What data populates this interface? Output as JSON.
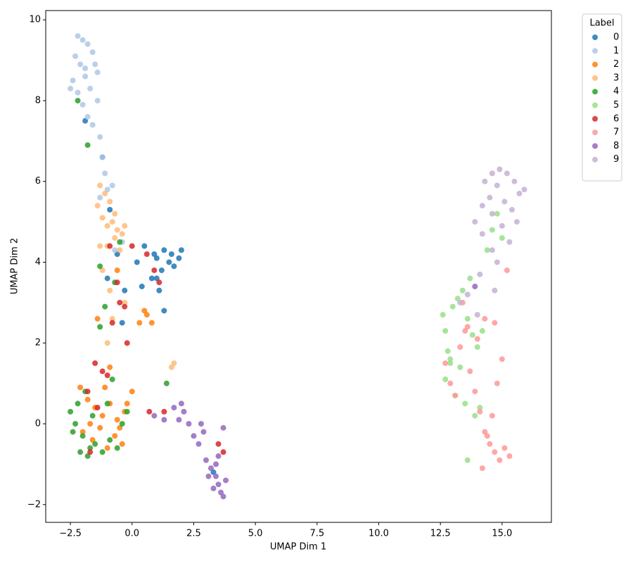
{
  "chart_data": {
    "type": "scatter",
    "x_label": "UMAP Dim 1",
    "y_label": "UMAP Dim 2",
    "legend_title": "Label",
    "xlim": [
      -3.5,
      17.0
    ],
    "ylim": [
      -2.44,
      10.23
    ],
    "xticks": [
      {
        "value": -2.5,
        "label": "−2.5"
      },
      {
        "value": 0,
        "label": "0.0"
      },
      {
        "value": 2.5,
        "label": "2.5"
      },
      {
        "value": 5,
        "label": "5.0"
      },
      {
        "value": 7.5,
        "label": "7.5"
      },
      {
        "value": 10,
        "label": "10.0"
      },
      {
        "value": 12.5,
        "label": "12.5"
      },
      {
        "value": 15,
        "label": "15.0"
      }
    ],
    "yticks": [
      {
        "value": -2,
        "label": "−2"
      },
      0,
      2,
      4,
      6,
      8,
      10
    ],
    "series": [
      {
        "name": "0",
        "color": "#1f77b4",
        "x": [
          1.0,
          1.3,
          1.6,
          1.9,
          2.0,
          1.2,
          0.8,
          1.1,
          1.5,
          0.4,
          0.2,
          -0.3,
          -0.6,
          1.0,
          0.5,
          -0.4,
          -0.9,
          -1.2,
          -1.9,
          -1.0,
          3.3,
          1.3,
          0.9,
          1.7
        ],
        "y": [
          4.1,
          4.3,
          4.2,
          4.1,
          4.3,
          3.8,
          3.6,
          3.3,
          4.0,
          3.4,
          4.0,
          3.3,
          4.2,
          3.6,
          4.4,
          2.5,
          5.3,
          6.6,
          7.5,
          3.6,
          -1.2,
          2.8,
          4.2,
          3.9
        ]
      },
      {
        "name": "1",
        "color": "#aec7e8",
        "x": [
          -2.2,
          -2.0,
          -1.8,
          -1.6,
          -2.3,
          -2.1,
          -1.9,
          -1.5,
          -2.5,
          -2.4,
          -2.2,
          -1.9,
          -1.7,
          -1.4,
          -2.0,
          -1.8,
          -1.6,
          -1.4,
          -1.3,
          -1.2,
          -1.1,
          -1.0,
          -0.8,
          -1.3,
          -0.7,
          -0.4
        ],
        "y": [
          9.6,
          9.5,
          9.4,
          9.2,
          9.1,
          8.9,
          8.8,
          8.9,
          8.3,
          8.5,
          8.2,
          8.6,
          8.3,
          8.7,
          7.9,
          7.6,
          7.4,
          8.0,
          7.1,
          6.6,
          6.2,
          5.8,
          5.9,
          5.6,
          4.3,
          4.5
        ]
      },
      {
        "name": "2",
        "color": "#ff7f0e",
        "x": [
          -2.1,
          -1.8,
          -1.5,
          -1.2,
          -0.9,
          -0.6,
          -0.3,
          0.0,
          -2.0,
          -1.6,
          -1.3,
          -1.0,
          -0.7,
          -0.4,
          -1.7,
          -1.1,
          -0.5,
          -0.2,
          0.6,
          0.8,
          0.5,
          0.3,
          -0.9,
          -1.4,
          -0.6
        ],
        "y": [
          0.9,
          0.6,
          0.4,
          0.2,
          0.5,
          0.1,
          0.3,
          0.8,
          -0.2,
          -0.4,
          -0.1,
          -0.6,
          -0.3,
          -0.5,
          0.0,
          0.9,
          -0.1,
          0.5,
          2.7,
          2.5,
          2.8,
          2.5,
          1.4,
          2.6,
          3.8
        ]
      },
      {
        "name": "3",
        "color": "#ffbb78",
        "x": [
          -1.3,
          -1.1,
          -0.9,
          -0.7,
          -1.4,
          -1.2,
          -1.0,
          -0.8,
          -0.6,
          -0.4,
          -1.3,
          -1.0,
          -0.7,
          -0.5,
          -1.2,
          -0.9,
          -0.3,
          -0.8,
          -1.0,
          1.6,
          1.7,
          -0.3
        ],
        "y": [
          5.9,
          5.7,
          5.5,
          5.2,
          5.4,
          5.1,
          4.9,
          5.0,
          4.8,
          4.7,
          4.4,
          4.4,
          4.6,
          4.3,
          3.8,
          3.3,
          3.0,
          2.6,
          2.0,
          1.4,
          1.5,
          4.9
        ]
      },
      {
        "name": "4",
        "color": "#2ca02c",
        "x": [
          -2.5,
          -2.3,
          -2.0,
          -1.7,
          -2.4,
          -2.1,
          -1.8,
          -1.5,
          -2.2,
          -1.9,
          -1.6,
          -1.2,
          -0.9,
          -0.6,
          -0.4,
          -1.0,
          -0.8,
          -1.3,
          -1.1,
          -0.7,
          -0.5,
          -1.3,
          -2.2,
          1.4,
          -0.2,
          -1.8
        ],
        "y": [
          0.3,
          0.0,
          -0.3,
          -0.6,
          -0.2,
          -0.7,
          -0.8,
          -0.5,
          0.5,
          0.8,
          0.2,
          -0.7,
          -0.4,
          -0.6,
          0.0,
          0.5,
          1.1,
          2.4,
          2.9,
          3.5,
          4.5,
          3.9,
          8.0,
          1.0,
          0.3,
          6.9
        ]
      },
      {
        "name": "5",
        "color": "#98df8a",
        "x": [
          12.6,
          12.7,
          12.8,
          12.9,
          13.0,
          13.2,
          13.4,
          13.6,
          13.8,
          14.0,
          14.2,
          13.1,
          13.5,
          13.9,
          14.1,
          12.7,
          12.9,
          13.3,
          13.7,
          14.4,
          14.6,
          14.8,
          15.0,
          13.6
        ],
        "y": [
          2.7,
          2.3,
          1.8,
          1.5,
          2.9,
          3.1,
          3.3,
          2.6,
          2.2,
          1.9,
          2.3,
          0.7,
          0.5,
          0.2,
          0.4,
          1.1,
          1.6,
          1.4,
          3.6,
          4.3,
          4.8,
          5.2,
          4.6,
          -0.9
        ]
      },
      {
        "name": "6",
        "color": "#d62728",
        "x": [
          -1.8,
          -1.5,
          -1.2,
          -0.9,
          -0.6,
          -0.3,
          0.0,
          0.6,
          0.9,
          1.1,
          -0.8,
          -0.5,
          -1.0,
          -1.4,
          -1.7,
          3.5,
          3.7,
          1.3,
          0.7,
          -0.2
        ],
        "y": [
          0.8,
          1.5,
          1.3,
          4.4,
          3.5,
          2.9,
          4.4,
          4.2,
          3.8,
          3.5,
          2.5,
          3.0,
          1.2,
          0.4,
          -0.7,
          -0.5,
          -0.7,
          0.3,
          0.3,
          2.0
        ]
      },
      {
        "name": "7",
        "color": "#ff9896",
        "x": [
          12.7,
          12.9,
          13.1,
          13.3,
          13.5,
          13.7,
          13.9,
          14.1,
          14.3,
          14.5,
          14.7,
          14.9,
          15.1,
          15.3,
          14.2,
          14.4,
          14.6,
          14.8,
          15.0,
          14.0,
          14.3,
          14.7,
          13.4,
          15.2,
          13.6
        ],
        "y": [
          1.5,
          1.0,
          0.7,
          1.9,
          2.3,
          1.3,
          0.8,
          0.3,
          -0.2,
          -0.5,
          -0.7,
          -0.9,
          -0.6,
          -0.8,
          -1.1,
          -0.3,
          0.2,
          1.0,
          1.6,
          2.1,
          2.6,
          2.5,
          3.0,
          3.8,
          2.4
        ]
      },
      {
        "name": "8",
        "color": "#9467bd",
        "x": [
          0.9,
          1.3,
          1.7,
          2.0,
          2.3,
          2.5,
          2.7,
          2.9,
          3.0,
          3.2,
          3.4,
          3.5,
          3.6,
          3.7,
          3.8,
          3.1,
          3.3,
          3.5,
          3.7,
          2.1,
          1.9,
          2.8,
          3.4,
          13.9
        ],
        "y": [
          0.2,
          0.1,
          0.4,
          0.5,
          0.0,
          -0.3,
          -0.5,
          -0.2,
          -0.9,
          -1.1,
          -1.3,
          -1.5,
          -1.7,
          -1.8,
          -1.4,
          -1.3,
          -1.6,
          -0.8,
          -0.1,
          0.3,
          0.1,
          0.0,
          -1.0,
          3.4
        ]
      },
      {
        "name": "9",
        "color": "#c5b0d5",
        "x": [
          14.3,
          14.6,
          14.9,
          15.2,
          15.5,
          15.7,
          14.5,
          14.8,
          15.1,
          15.4,
          15.6,
          14.2,
          14.6,
          15.0,
          15.3,
          13.9,
          14.2,
          14.6,
          14.8,
          13.6,
          14.1,
          14.7,
          15.9,
          13.3,
          14.0
        ],
        "y": [
          6.0,
          6.2,
          6.3,
          6.2,
          6.0,
          5.7,
          5.6,
          5.9,
          5.5,
          5.3,
          5.0,
          5.4,
          5.2,
          4.9,
          4.5,
          5.0,
          4.7,
          4.3,
          4.0,
          3.2,
          3.7,
          3.3,
          5.8,
          3.0,
          2.7
        ]
      }
    ]
  }
}
